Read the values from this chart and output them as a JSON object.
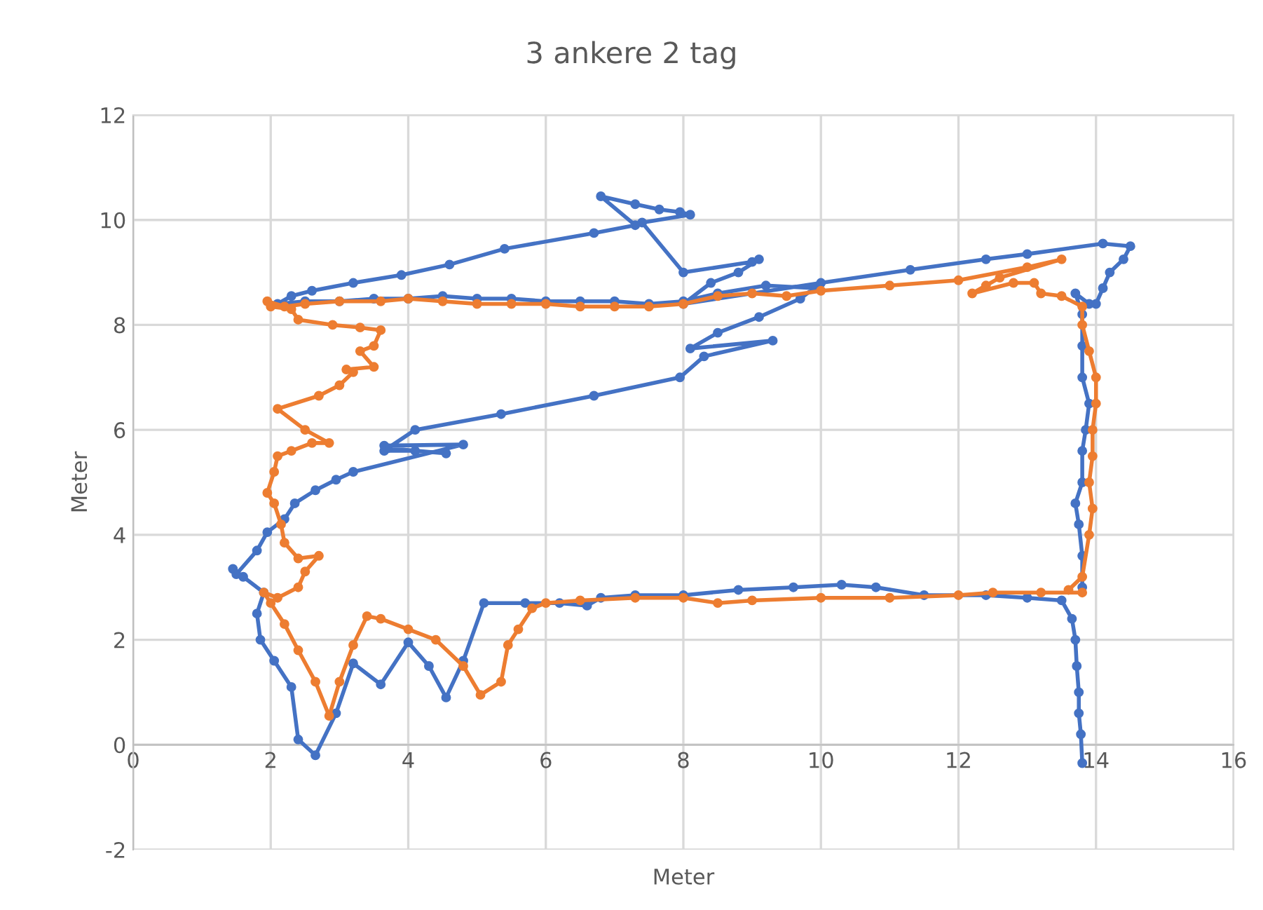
{
  "chart_data": {
    "type": "line",
    "title": "3 ankere 2 tag",
    "xlabel": "Meter",
    "ylabel": "Meter",
    "xlim": [
      0,
      16
    ],
    "xticks": [
      0,
      2,
      4,
      6,
      8,
      10,
      12,
      14,
      16
    ],
    "ylim": [
      -2,
      12
    ],
    "yticks": [
      -2,
      0,
      2,
      4,
      6,
      8,
      10,
      12
    ],
    "grid": true,
    "marker": "circle",
    "line_style": "solid",
    "series": [
      {
        "color": "#4472c4",
        "x": [
          13.8,
          13.78,
          13.75,
          13.75,
          13.72,
          13.7,
          13.65,
          13.5,
          13.0,
          12.4,
          11.5,
          10.8,
          10.3,
          9.6,
          8.8,
          8.0,
          7.3,
          6.8,
          6.6,
          6.2,
          5.7,
          5.1,
          4.8,
          4.55,
          4.3,
          4.0,
          3.6,
          3.2,
          2.95,
          2.65,
          2.4,
          2.3,
          2.05,
          1.85,
          1.8,
          1.9,
          1.6,
          1.45,
          1.5,
          1.8,
          1.95,
          2.2,
          2.35,
          2.65,
          2.95,
          3.2,
          4.8,
          3.65,
          3.65,
          4.1,
          4.55,
          3.7,
          4.1,
          5.35,
          6.7,
          7.95,
          8.3,
          9.3,
          8.1,
          8.5,
          9.1,
          9.7,
          9.9,
          9.2,
          8.5,
          8.0,
          7.5,
          7.0,
          6.5,
          6.0,
          5.5,
          5.0,
          4.5,
          4.0,
          3.5,
          3.0,
          2.5,
          2.1,
          2.3,
          2.6,
          3.2,
          3.9,
          4.6,
          5.4,
          6.7,
          7.3,
          6.8,
          7.3,
          7.65,
          7.95,
          8.1,
          7.4,
          8.0,
          9.0,
          9.1,
          8.8,
          8.4,
          8.0,
          10.0,
          11.3,
          12.4,
          13.0,
          14.1,
          14.5,
          14.4,
          14.2,
          14.1,
          14.0,
          13.9,
          13.7,
          13.8,
          13.8,
          13.8,
          13.9,
          13.85,
          13.8,
          13.8,
          13.7,
          13.75,
          13.8,
          13.8
        ],
        "values": [
          -0.35,
          0.2,
          0.6,
          1.0,
          1.5,
          2.0,
          2.4,
          2.75,
          2.8,
          2.85,
          2.85,
          3.0,
          3.05,
          3.0,
          2.95,
          2.85,
          2.85,
          2.8,
          2.65,
          2.7,
          2.7,
          2.7,
          1.6,
          0.9,
          1.5,
          1.95,
          1.15,
          1.55,
          0.6,
          -0.2,
          0.1,
          1.1,
          1.6,
          2.0,
          2.5,
          2.9,
          3.2,
          3.35,
          3.25,
          3.7,
          4.05,
          4.3,
          4.6,
          4.85,
          5.05,
          5.2,
          5.72,
          5.7,
          5.6,
          5.6,
          5.55,
          5.65,
          6.0,
          6.3,
          6.65,
          7.0,
          7.4,
          7.7,
          7.55,
          7.85,
          8.15,
          8.5,
          8.7,
          8.75,
          8.6,
          8.45,
          8.4,
          8.45,
          8.45,
          8.45,
          8.5,
          8.5,
          8.55,
          8.5,
          8.5,
          8.45,
          8.45,
          8.4,
          8.55,
          8.65,
          8.8,
          8.95,
          9.15,
          9.45,
          9.75,
          9.9,
          10.45,
          10.3,
          10.2,
          10.15,
          10.1,
          9.95,
          9.0,
          9.2,
          9.25,
          9.0,
          8.8,
          8.4,
          8.8,
          9.05,
          9.25,
          9.35,
          9.55,
          9.5,
          9.25,
          9.0,
          8.7,
          8.4,
          8.4,
          8.6,
          8.2,
          7.6,
          7.0,
          6.5,
          6.0,
          5.6,
          5.0,
          4.6,
          4.2,
          3.6,
          3.0
        ]
      },
      {
        "color": "#ed7d31",
        "x": [
          13.8,
          13.2,
          12.5,
          12.0,
          11.0,
          10.0,
          9.0,
          8.5,
          8.0,
          7.3,
          6.5,
          6.0,
          5.8,
          5.6,
          5.45,
          5.35,
          5.05,
          4.8,
          4.4,
          4.0,
          3.6,
          3.4,
          3.2,
          3.0,
          2.85,
          2.65,
          2.4,
          2.2,
          2.0,
          1.9,
          2.1,
          2.4,
          2.5,
          2.7,
          2.4,
          2.2,
          2.15,
          2.05,
          1.95,
          2.05,
          2.1,
          2.3,
          2.6,
          2.85,
          2.5,
          2.1,
          2.7,
          3.0,
          3.2,
          3.1,
          3.5,
          3.3,
          3.5,
          3.6,
          3.3,
          2.9,
          2.4,
          2.3,
          2.0,
          1.95,
          2.2,
          2.5,
          3.0,
          3.6,
          4.0,
          4.5,
          5.0,
          5.5,
          6.0,
          6.5,
          7.0,
          7.5,
          8.0,
          8.5,
          9.0,
          9.5,
          10.0,
          11.0,
          12.0,
          13.0,
          13.5,
          12.6,
          12.4,
          12.2,
          12.8,
          13.1,
          13.2,
          13.5,
          13.8,
          13.8,
          13.9,
          14.0,
          14.0,
          13.95,
          13.95,
          13.9,
          13.95,
          13.9,
          13.8,
          13.6
        ],
        "values": [
          2.9,
          2.9,
          2.9,
          2.85,
          2.8,
          2.8,
          2.75,
          2.7,
          2.8,
          2.8,
          2.75,
          2.7,
          2.6,
          2.2,
          1.9,
          1.2,
          0.95,
          1.5,
          2.0,
          2.2,
          2.4,
          2.45,
          1.9,
          1.2,
          0.55,
          1.2,
          1.8,
          2.3,
          2.7,
          2.9,
          2.8,
          3.0,
          3.3,
          3.6,
          3.55,
          3.85,
          4.2,
          4.6,
          4.8,
          5.2,
          5.5,
          5.6,
          5.75,
          5.75,
          6.0,
          6.4,
          6.65,
          6.85,
          7.1,
          7.15,
          7.2,
          7.5,
          7.6,
          7.9,
          7.95,
          8.0,
          8.1,
          8.3,
          8.35,
          8.45,
          8.35,
          8.4,
          8.45,
          8.45,
          8.5,
          8.45,
          8.4,
          8.4,
          8.4,
          8.35,
          8.35,
          8.35,
          8.4,
          8.55,
          8.6,
          8.55,
          8.65,
          8.75,
          8.85,
          9.1,
          9.25,
          8.9,
          8.75,
          8.6,
          8.8,
          8.8,
          8.6,
          8.55,
          8.35,
          8.0,
          7.5,
          7.0,
          6.5,
          6.0,
          5.5,
          5.0,
          4.5,
          4.0,
          3.2,
          2.95
        ]
      }
    ]
  }
}
